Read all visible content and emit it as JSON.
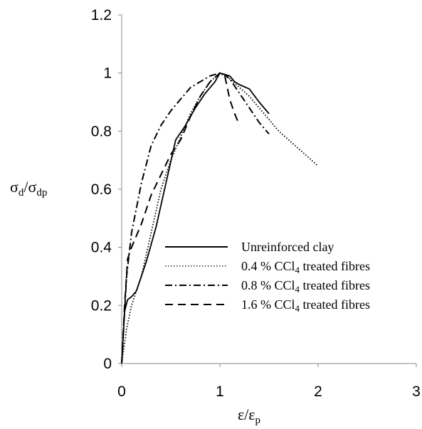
{
  "chart_data": {
    "type": "line",
    "title": "",
    "xlabel": {
      "main": "ε/ε",
      "sub": "p"
    },
    "ylabel": {
      "num": "σ",
      "num_sub": "d",
      "sep": "/σ",
      "den_sub": "dp"
    },
    "xlim": [
      0,
      3
    ],
    "ylim": [
      0,
      1.2
    ],
    "xticks": [
      "0",
      "1",
      "2",
      "3"
    ],
    "yticks": [
      "0",
      "0.2",
      "0.4",
      "0.6",
      "0.8",
      "1",
      "1.2"
    ],
    "grid": false,
    "legend_position": "lower-right",
    "series": [
      {
        "name": "Unreinforced clay",
        "style": "solid",
        "x": [
          0,
          0.03,
          0.06,
          0.1,
          0.15,
          0.25,
          0.35,
          0.45,
          0.55,
          0.65,
          0.75,
          0.85,
          0.95,
          1.0,
          1.05,
          1.1,
          1.15,
          1.2,
          1.3,
          1.4,
          1.5
        ],
        "y": [
          0,
          0.18,
          0.22,
          0.23,
          0.25,
          0.35,
          0.47,
          0.62,
          0.77,
          0.82,
          0.88,
          0.93,
          0.97,
          1.0,
          0.995,
          0.99,
          0.97,
          0.96,
          0.945,
          0.9,
          0.86
        ]
      },
      {
        "name": "0.4 % CCl4 treated fibres",
        "legend_label": {
          "pre": "0.4 % CCl",
          "sub": "4",
          "post": " treated fibres"
        },
        "style": "dotted",
        "x": [
          0,
          0.05,
          0.1,
          0.2,
          0.3,
          0.4,
          0.5,
          0.6,
          0.7,
          0.8,
          0.9,
          1.0,
          1.1,
          1.2,
          1.3,
          1.4,
          1.5,
          1.6,
          1.7,
          1.8,
          1.9,
          2.0
        ],
        "y": [
          0,
          0.12,
          0.2,
          0.3,
          0.45,
          0.6,
          0.7,
          0.78,
          0.86,
          0.92,
          0.97,
          1.0,
          0.98,
          0.95,
          0.92,
          0.88,
          0.84,
          0.8,
          0.77,
          0.74,
          0.71,
          0.68
        ]
      },
      {
        "name": "0.8 % CCl4 treated fibres",
        "legend_label": {
          "pre": "0.8 % CCl",
          "sub": "4",
          "post": " treated fibres"
        },
        "style": "dashdot",
        "x": [
          0,
          0.05,
          0.1,
          0.2,
          0.3,
          0.4,
          0.5,
          0.6,
          0.7,
          0.8,
          0.9,
          1.0,
          1.05,
          1.1,
          1.2,
          1.3,
          1.4,
          1.5
        ],
        "y": [
          0,
          0.3,
          0.45,
          0.62,
          0.75,
          0.82,
          0.87,
          0.91,
          0.95,
          0.97,
          0.99,
          1.0,
          0.995,
          0.98,
          0.93,
          0.88,
          0.83,
          0.79
        ]
      },
      {
        "name": "1.6 % CCl4 treated fibres",
        "legend_label": {
          "pre": "1.6 % CCl",
          "sub": "4",
          "post": " treated fibres"
        },
        "style": "dashed",
        "x": [
          0,
          0.03,
          0.06,
          0.1,
          0.2,
          0.3,
          0.4,
          0.5,
          0.6,
          0.7,
          0.8,
          0.9,
          1.0,
          1.05,
          1.1,
          1.15,
          1.2
        ],
        "y": [
          0,
          0.2,
          0.36,
          0.4,
          0.48,
          0.58,
          0.65,
          0.72,
          0.77,
          0.85,
          0.92,
          0.97,
          1.0,
          0.99,
          0.91,
          0.86,
          0.82
        ]
      }
    ]
  },
  "colors": {
    "line": "#000000",
    "background": "#ffffff"
  }
}
